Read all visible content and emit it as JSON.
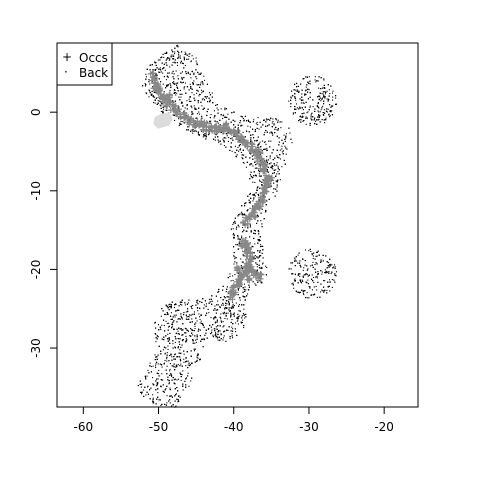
{
  "chart_data": {
    "type": "scatter",
    "title": "",
    "xlabel": "",
    "ylabel": "",
    "xlim": [
      -63.5,
      -15.5
    ],
    "ylim": [
      -37.5,
      8.8
    ],
    "x_ticks": [
      -60,
      -50,
      -40,
      -30,
      -20
    ],
    "y_ticks": [
      0,
      -10,
      -20,
      -30
    ],
    "legend": {
      "position": "top-left",
      "entries": [
        {
          "symbol": "+",
          "label": "Occs"
        },
        {
          "symbol": "·",
          "label": "Back"
        }
      ]
    },
    "series": [
      {
        "name": "Occs",
        "marker": "+",
        "color": "#888888",
        "points": [
          [
            -51.0,
            4.6
          ],
          [
            -50.6,
            4.0
          ],
          [
            -50.3,
            3.4
          ],
          [
            -49.9,
            2.8
          ],
          [
            -49.5,
            2.2
          ],
          [
            -49.1,
            1.6
          ],
          [
            -48.6,
            1.1
          ],
          [
            -48.1,
            0.6
          ],
          [
            -47.5,
            0.1
          ],
          [
            -46.9,
            -0.4
          ],
          [
            -46.3,
            -0.9
          ],
          [
            -45.7,
            -1.2
          ],
          [
            -45.1,
            -1.5
          ],
          [
            -44.5,
            -1.6
          ],
          [
            -43.9,
            -1.9
          ],
          [
            -43.3,
            -2.1
          ],
          [
            -42.7,
            -2.2
          ],
          [
            -42.1,
            -2.1
          ],
          [
            -41.5,
            -2.0
          ],
          [
            -40.9,
            -2.1
          ],
          [
            -40.3,
            -2.4
          ],
          [
            -39.7,
            -2.7
          ],
          [
            -39.1,
            -3.2
          ],
          [
            -38.5,
            -3.7
          ],
          [
            -37.9,
            -4.2
          ],
          [
            -37.4,
            -4.9
          ],
          [
            -36.9,
            -5.5
          ],
          [
            -36.5,
            -6.2
          ],
          [
            -36.1,
            -6.8
          ],
          [
            -35.8,
            -7.5
          ],
          [
            -35.6,
            -8.3
          ],
          [
            -35.5,
            -9.0
          ],
          [
            -35.6,
            -9.7
          ],
          [
            -35.8,
            -10.4
          ],
          [
            -36.1,
            -11.1
          ],
          [
            -36.5,
            -11.7
          ],
          [
            -37.0,
            -12.4
          ],
          [
            -37.5,
            -13.1
          ],
          [
            -38.0,
            -13.6
          ],
          [
            -38.4,
            -14.1
          ],
          [
            -38.5,
            -16.6
          ],
          [
            -38.3,
            -17.3
          ],
          [
            -38.1,
            -18.0
          ],
          [
            -37.9,
            -18.6
          ],
          [
            -38.0,
            -19.3
          ],
          [
            -38.2,
            -19.9
          ],
          [
            -38.6,
            -20.5
          ],
          [
            -39.0,
            -21.0
          ],
          [
            -39.4,
            -21.7
          ],
          [
            -39.8,
            -22.3
          ],
          [
            -40.1,
            -23.0
          ],
          [
            -40.4,
            -23.5
          ],
          [
            -37.6,
            -20.2
          ],
          [
            -37.0,
            -20.6
          ],
          [
            -36.5,
            -20.9
          ],
          [
            -50.0,
            3.0
          ],
          [
            -48.8,
            1.9
          ],
          [
            -44.0,
            -1.4
          ],
          [
            -41.0,
            -1.8
          ],
          [
            -36.8,
            -5.0
          ],
          [
            -35.2,
            -8.6
          ],
          [
            -36.8,
            -12.0
          ],
          [
            -38.8,
            -17.0
          ],
          [
            -39.5,
            -20.0
          ],
          [
            -38.2,
            -21.2
          ]
        ]
      },
      {
        "name": "Back",
        "marker": "·",
        "color": "#000000",
        "regions": [
          {
            "polygon": [
              [
                -52.0,
                5.5
              ],
              [
                -49.5,
                7.5
              ],
              [
                -47.5,
                8.6
              ],
              [
                -45.0,
                7.0
              ],
              [
                -43.5,
                3.6
              ],
              [
                -42.3,
                1.4
              ],
              [
                -39.8,
                0.0
              ],
              [
                -37.8,
                -0.4
              ],
              [
                -34.8,
                -0.6
              ],
              [
                -32.8,
                -1.5
              ],
              [
                -32.2,
                -3.8
              ],
              [
                -33.0,
                -6.2
              ],
              [
                -33.8,
                -8.5
              ],
              [
                -34.6,
                -11.5
              ],
              [
                -36.0,
                -13.5
              ],
              [
                -36.5,
                -15.5
              ],
              [
                -36.0,
                -18.0
              ],
              [
                -35.3,
                -20.5
              ],
              [
                -36.5,
                -22.0
              ],
              [
                -37.8,
                -22.5
              ],
              [
                -38.8,
                -24.6
              ],
              [
                -39.6,
                -27.5
              ],
              [
                -41.2,
                -29.4
              ],
              [
                -43.0,
                -28.8
              ],
              [
                -44.2,
                -30.8
              ],
              [
                -45.4,
                -33.5
              ],
              [
                -46.5,
                -35.8
              ],
              [
                -47.8,
                -37.5
              ],
              [
                -49.8,
                -37.4
              ],
              [
                -51.8,
                -36.5
              ],
              [
                -53.0,
                -34.8
              ],
              [
                -51.0,
                -31.5
              ],
              [
                -49.7,
                -29.5
              ],
              [
                -47.8,
                -26.8
              ],
              [
                -45.8,
                -23.8
              ],
              [
                -43.2,
                -23.4
              ],
              [
                -41.4,
                -21.8
              ],
              [
                -40.2,
                -19.6
              ],
              [
                -40.1,
                -17.0
              ],
              [
                -40.4,
                -14.6
              ],
              [
                -39.1,
                -11.8
              ],
              [
                -37.8,
                -9.6
              ],
              [
                -38.2,
                -7.2
              ],
              [
                -40.8,
                -4.6
              ],
              [
                -43.2,
                -3.6
              ],
              [
                -45.8,
                -2.6
              ],
              [
                -48.8,
                -0.8
              ],
              [
                -51.2,
                1.6
              ],
              [
                -52.5,
                3.8
              ]
            ]
          },
          {
            "circle": [
              -29.6,
              1.5,
              3.2
            ]
          },
          {
            "circle": [
              -29.6,
              -20.5,
              3.2
            ]
          },
          {
            "circle": [
              -47.0,
              -27.5,
              3.8
            ]
          },
          {
            "circle": [
              -41.2,
              -26.0,
              2.8
            ]
          }
        ]
      },
      {
        "name": "",
        "marker": "shaded",
        "color": "#dcdcdc",
        "polygon": [
          [
            -50.5,
            -0.6
          ],
          [
            -49.6,
            -0.2
          ],
          [
            -48.6,
            0.0
          ],
          [
            -48.1,
            -0.8
          ],
          [
            -48.6,
            -1.7
          ],
          [
            -50.1,
            -2.1
          ],
          [
            -50.7,
            -1.5
          ]
        ]
      }
    ]
  }
}
